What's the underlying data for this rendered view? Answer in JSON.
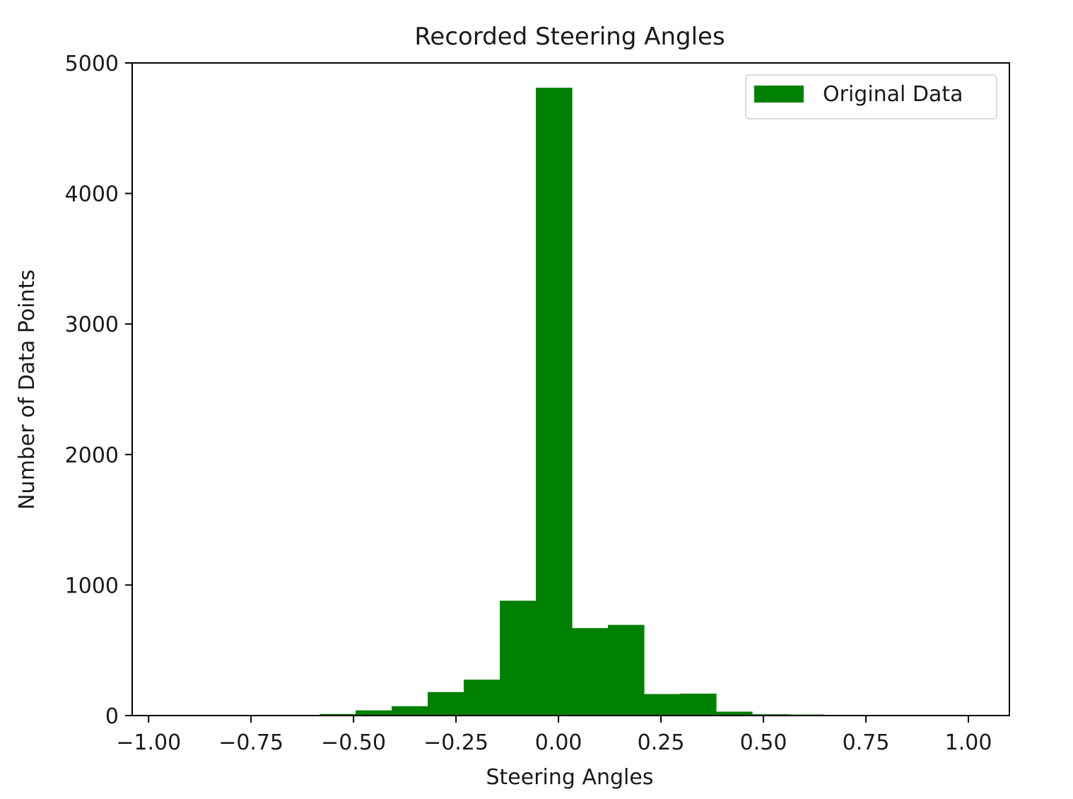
{
  "chart_data": {
    "type": "bar",
    "title": "Recorded Steering Angles",
    "xlabel": "Steering Angles",
    "ylabel": "Number of Data Points",
    "xlim": [
      -1.04,
      1.1
    ],
    "ylim": [
      0,
      5000
    ],
    "x_ticks": [
      -1.0,
      -0.75,
      -0.5,
      -0.25,
      0.0,
      0.25,
      0.5,
      0.75,
      1.0
    ],
    "x_tick_labels": [
      "−1.00",
      "−0.75",
      "−0.50",
      "−0.25",
      "0.00",
      "0.25",
      "0.50",
      "0.75",
      "1.00"
    ],
    "y_ticks": [
      0,
      1000,
      2000,
      3000,
      4000,
      5000
    ],
    "y_tick_labels": [
      "0",
      "1000",
      "2000",
      "3000",
      "4000",
      "5000"
    ],
    "grid": false,
    "legend_position": "top-right",
    "series": [
      {
        "name": "Original Data",
        "color": "#008000",
        "bin_edges": [
          -0.5827,
          -0.4948,
          -0.4069,
          -0.319,
          -0.231,
          -0.1431,
          -0.0552,
          0.0328,
          0.1207,
          0.2086,
          0.2966,
          0.3845,
          0.4724,
          0.5603,
          0.6483
        ],
        "values": [
          12,
          40,
          72,
          180,
          275,
          880,
          4810,
          670,
          695,
          165,
          168,
          30,
          10,
          8
        ]
      }
    ]
  }
}
